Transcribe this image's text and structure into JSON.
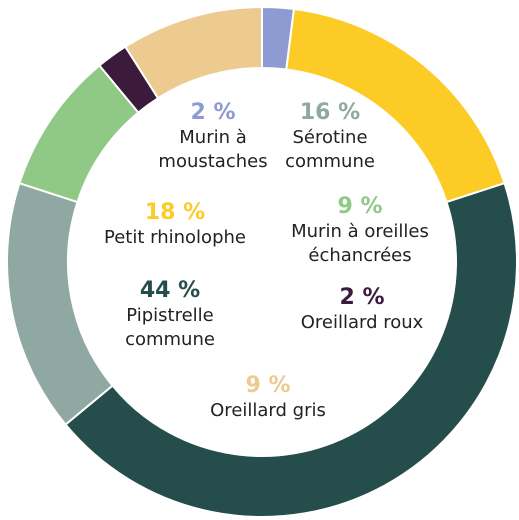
{
  "chart_data": {
    "type": "donut",
    "categories": [
      "Murin à moustaches",
      "Petit rhinolophe",
      "Pipistrelle commune",
      "Sérotine commune",
      "Murin à oreilles échancrées",
      "Oreillard roux",
      "Oreillard gris"
    ],
    "values": [
      2,
      18,
      44,
      16,
      9,
      2,
      9
    ],
    "value_labels": [
      "2 %",
      "18 %",
      "44 %",
      "16 %",
      "9 %",
      "2 %",
      "9 %"
    ],
    "colors": [
      "#8e9bd2",
      "#fccb26",
      "#244d4b",
      "#8fa8a2",
      "#90c985",
      "#3b1a3c",
      "#ecca90"
    ]
  }
}
